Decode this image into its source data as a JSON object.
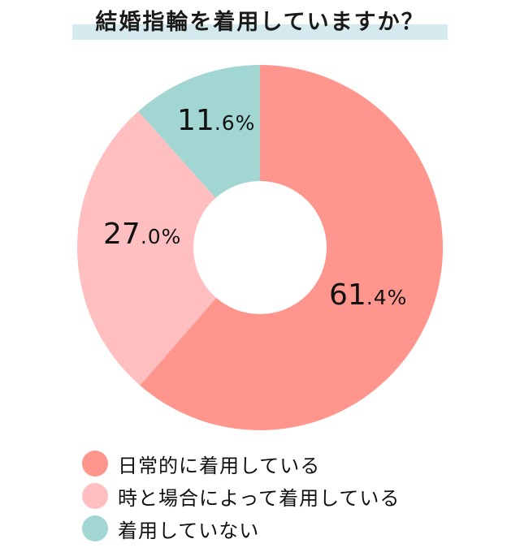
{
  "title": "結婚指輪を着用していますか？",
  "colors": {
    "daily": "#ff968e",
    "sometimes": "#ffbfc0",
    "none": "#a2d6d3",
    "title_highlight": "#d5eaef"
  },
  "labels": {
    "daily": {
      "int": "61",
      "dec": ".4%"
    },
    "sometimes": {
      "int": "27",
      "dec": ".0%"
    },
    "none": {
      "int": "11",
      "dec": ".6%"
    }
  },
  "legend": [
    {
      "label": "日常的に着用している"
    },
    {
      "label": "時と場合によって着用している"
    },
    {
      "label": "着用していない"
    }
  ],
  "chart_data": {
    "type": "pie",
    "title": "結婚指輪を着用していますか？",
    "donut": true,
    "categories": [
      "日常的に着用している",
      "時と場合によって着用している",
      "着用していない"
    ],
    "values": [
      61.4,
      27.0,
      11.6
    ],
    "unit": "%",
    "colors": [
      "#ff968e",
      "#ffbfc0",
      "#a2d6d3"
    ],
    "start_angle": "12 o'clock, clockwise",
    "legend_position": "bottom"
  }
}
